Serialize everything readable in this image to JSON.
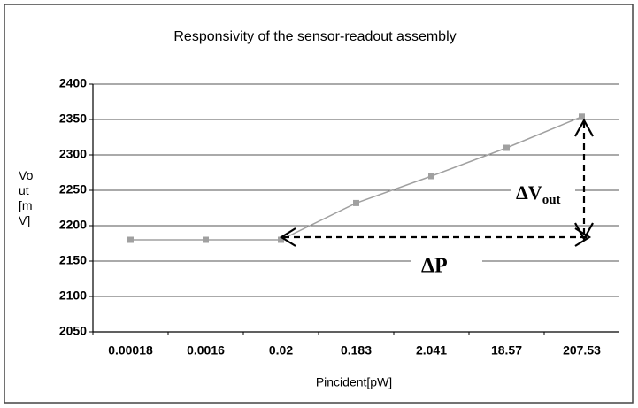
{
  "chart_data": {
    "type": "line",
    "title": "Responsivity of the sensor-readout assembly",
    "xlabel": "Pincident[pW]",
    "ylabel": "Vout[mV]",
    "categories": [
      "0.00018",
      "0.0016",
      "0.02",
      "0.183",
      "2.041",
      "18.57",
      "207.53"
    ],
    "series": [
      {
        "color": "#a0a0a0",
        "values": [
          2180,
          2180,
          2180,
          2232,
          2270,
          2310,
          2354
        ]
      }
    ],
    "ylim": [
      2050,
      2400
    ],
    "yticks": [
      2050,
      2100,
      2150,
      2200,
      2250,
      2300,
      2350,
      2400
    ],
    "grid": true,
    "annotations": {
      "delta_v": "ΔV",
      "delta_v_sub": "out",
      "delta_p": "ΔP"
    }
  }
}
